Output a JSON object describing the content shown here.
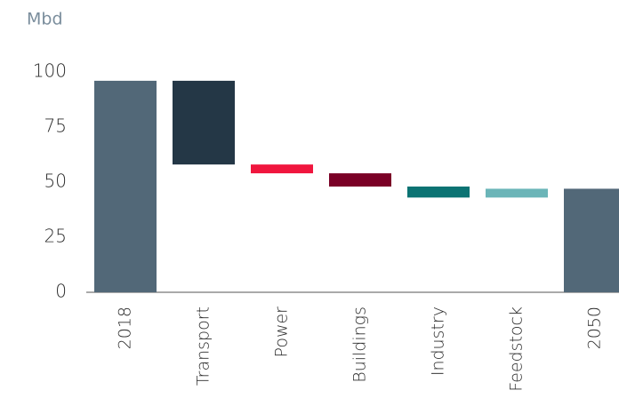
{
  "chart_data": {
    "type": "waterfall",
    "y_label": "Mbd",
    "categories": [
      "2018",
      "Transport",
      "Power",
      "Buildings",
      "Industry",
      "Feedstock",
      "2050"
    ],
    "measure": [
      "absolute",
      "relative",
      "relative",
      "relative",
      "relative",
      "relative",
      "absolute"
    ],
    "values": [
      96,
      -38,
      -4,
      -6,
      -5,
      4,
      47
    ],
    "colors": [
      "#526878",
      "#243746",
      "#f0163e",
      "#7a0026",
      "#0b7373",
      "#6bb5b8",
      "#526878"
    ],
    "ylim": [
      0,
      100
    ],
    "yticks": [
      0,
      25,
      50,
      75,
      100
    ],
    "grid": false
  }
}
